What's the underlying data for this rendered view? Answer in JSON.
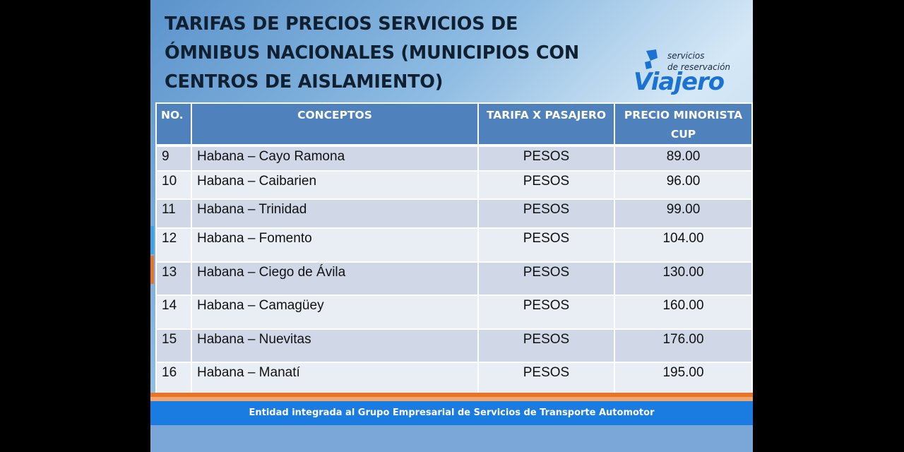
{
  "title": "TARIFAS DE PRECIOS SERVICIOS DE ÓMNIBUS NACIONALES (MUNICIPIOS CON CENTROS DE AISLAMIENTO)",
  "logo": {
    "line1": "servicios",
    "line2": "de reservación",
    "brand": "Viajero"
  },
  "table": {
    "headers": [
      "NO.",
      "CONCEPTOS",
      "TARIFA X PASAJERO",
      "PRECIO MINORISTA CUP"
    ],
    "rows": [
      {
        "no": "9",
        "concepto": "Habana – Cayo Ramona",
        "tarifa": "PESOS",
        "precio": "89.00"
      },
      {
        "no": "10",
        "concepto": "Habana – Caibarien",
        "tarifa": "PESOS",
        "precio": "96.00"
      },
      {
        "no": "11",
        "concepto": "Habana – Trinidad",
        "tarifa": "PESOS",
        "precio": "99.00"
      },
      {
        "no": "12",
        "concepto": "Habana – Fomento",
        "tarifa": "PESOS",
        "precio": "104.00"
      },
      {
        "no": "13",
        "concepto": "Habana – Ciego de Ávila",
        "tarifa": "PESOS",
        "precio": "130.00"
      },
      {
        "no": "14",
        "concepto": "Habana – Camagüey",
        "tarifa": "PESOS",
        "precio": "160.00"
      },
      {
        "no": "15",
        "concepto": "Habana – Nuevitas",
        "tarifa": "PESOS",
        "precio": "176.00"
      },
      {
        "no": "16",
        "concepto": "Habana – Manatí",
        "tarifa": "PESOS",
        "precio": "195.00"
      }
    ]
  },
  "footer": "Entidad integrada al Grupo Empresarial de Servicios de Transporte Automotor",
  "colors": {
    "header_bg": "#4f81bd",
    "row_odd": "#d0d8e8",
    "row_even": "#e9edf4",
    "footer_bg": "#1a7be0",
    "accent": "#e8742a"
  }
}
